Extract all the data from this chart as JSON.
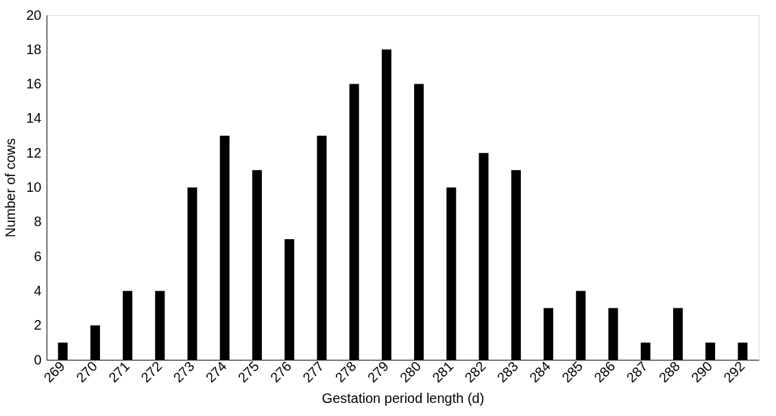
{
  "chart_data": {
    "type": "bar",
    "xlabel": "Gestation period length (d)",
    "ylabel": "Number of cows",
    "categories": [
      "269",
      "270",
      "271",
      "272",
      "273",
      "274",
      "275",
      "276",
      "277",
      "278",
      "279",
      "280",
      "281",
      "282",
      "283",
      "284",
      "285",
      "286",
      "287",
      "288",
      "290",
      "292"
    ],
    "values": [
      1,
      2,
      4,
      4,
      10,
      13,
      11,
      7,
      13,
      16,
      18,
      16,
      10,
      12,
      11,
      3,
      4,
      3,
      1,
      3,
      1,
      1
    ],
    "color": "#000000",
    "ylim": [
      0,
      20
    ],
    "yticks": [
      0,
      2,
      4,
      6,
      8,
      10,
      12,
      14,
      16,
      18,
      20
    ],
    "grid": false
  }
}
